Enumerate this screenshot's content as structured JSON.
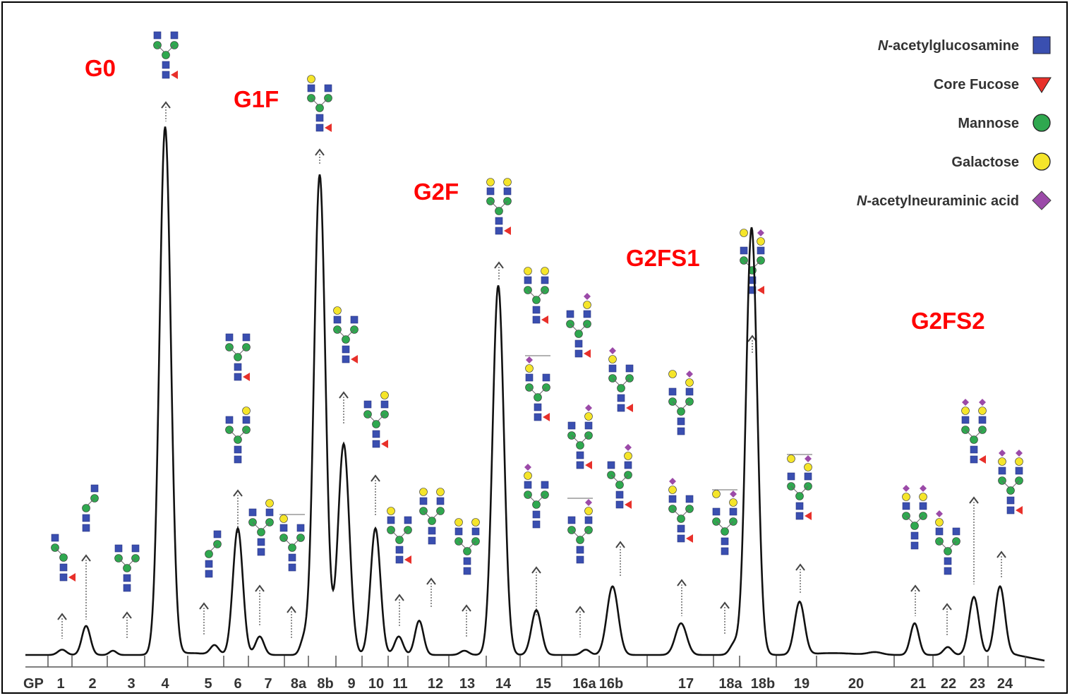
{
  "chart_data": {
    "type": "line",
    "title": "",
    "xlabel": "",
    "ylabel": "",
    "x_axis_prefix": "GP",
    "categories": [
      "1",
      "2",
      "3",
      "4",
      "5",
      "6",
      "7",
      "8a",
      "8b",
      "9",
      "10",
      "11",
      "12",
      "13",
      "14",
      "15",
      "16a",
      "16b",
      "17",
      "18a",
      "18b",
      "19",
      "20",
      "21",
      "22",
      "23",
      "24"
    ],
    "values": [
      1,
      5.5,
      0.8,
      100,
      1.8,
      24,
      3.5,
      2.5,
      91,
      40,
      24,
      3.5,
      6.5,
      0.8,
      70,
      8.5,
      1,
      13,
      6,
      2,
      81,
      10,
      0.5,
      6,
      1.5,
      11,
      13
    ],
    "ylim": [
      0,
      105
    ],
    "grid": false,
    "glycan_group_labels": [
      "G0",
      "G1F",
      "G2F",
      "G2FS1",
      "G2FS2"
    ],
    "legend": {
      "position": "top-right",
      "entries": [
        {
          "prefix": "N",
          "label": "-acetylglucosamine",
          "symbol": "square",
          "color": "#3a4fb0"
        },
        {
          "prefix": "",
          "label": "Core Fucose",
          "symbol": "triangle",
          "color": "#e8302a"
        },
        {
          "prefix": "",
          "label": "Mannose",
          "symbol": "circle",
          "color": "#2fa84f"
        },
        {
          "prefix": "",
          "label": "Galactose",
          "symbol": "circle",
          "color": "#f5e52a"
        },
        {
          "prefix": "N",
          "label": "-acetylneuraminic acid",
          "symbol": "diamond",
          "color": "#9b4aa8"
        }
      ]
    },
    "colors": {
      "trace": "#111111",
      "group_label": "#ff0000"
    }
  }
}
